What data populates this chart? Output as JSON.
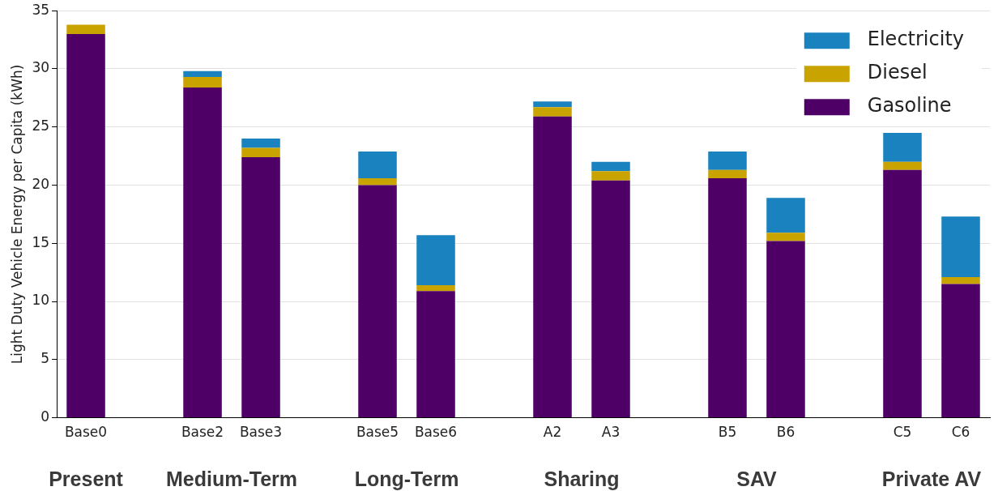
{
  "chart_data": {
    "type": "bar",
    "stacked": true,
    "ylabel": "Light Duty Vehicle Energy per Capita (kWh)",
    "categories": [
      "Base0",
      null,
      "Base2",
      "Base3",
      null,
      "Base5",
      "Base6",
      null,
      "A2",
      "A3",
      null,
      "B5",
      "B6",
      null,
      "C5",
      "C6"
    ],
    "series": [
      {
        "name": "Gasoline",
        "color": "#4f0066",
        "values": [
          33.0,
          null,
          28.4,
          22.4,
          null,
          20.0,
          10.9,
          null,
          25.9,
          20.4,
          null,
          20.6,
          15.2,
          null,
          21.3,
          11.5
        ]
      },
      {
        "name": "Diesel",
        "color": "#c9a400",
        "values": [
          0.8,
          null,
          0.9,
          0.8,
          null,
          0.6,
          0.5,
          null,
          0.8,
          0.8,
          null,
          0.7,
          0.7,
          null,
          0.7,
          0.6
        ]
      },
      {
        "name": "Electricity",
        "color": "#1a82bf",
        "values": [
          0,
          null,
          0.5,
          0.8,
          null,
          2.3,
          4.3,
          null,
          0.5,
          0.8,
          null,
          1.6,
          3.0,
          null,
          2.5,
          5.2
        ]
      }
    ],
    "annotations": [
      "Present",
      "Medium-Term",
      "Long-Term",
      "Sharing",
      "SAV",
      "Private AV"
    ],
    "ylim": [
      0,
      35
    ],
    "yticks": [
      0,
      5,
      10,
      15,
      20,
      25,
      30,
      35
    ],
    "grid": "y",
    "legend": "top right"
  }
}
